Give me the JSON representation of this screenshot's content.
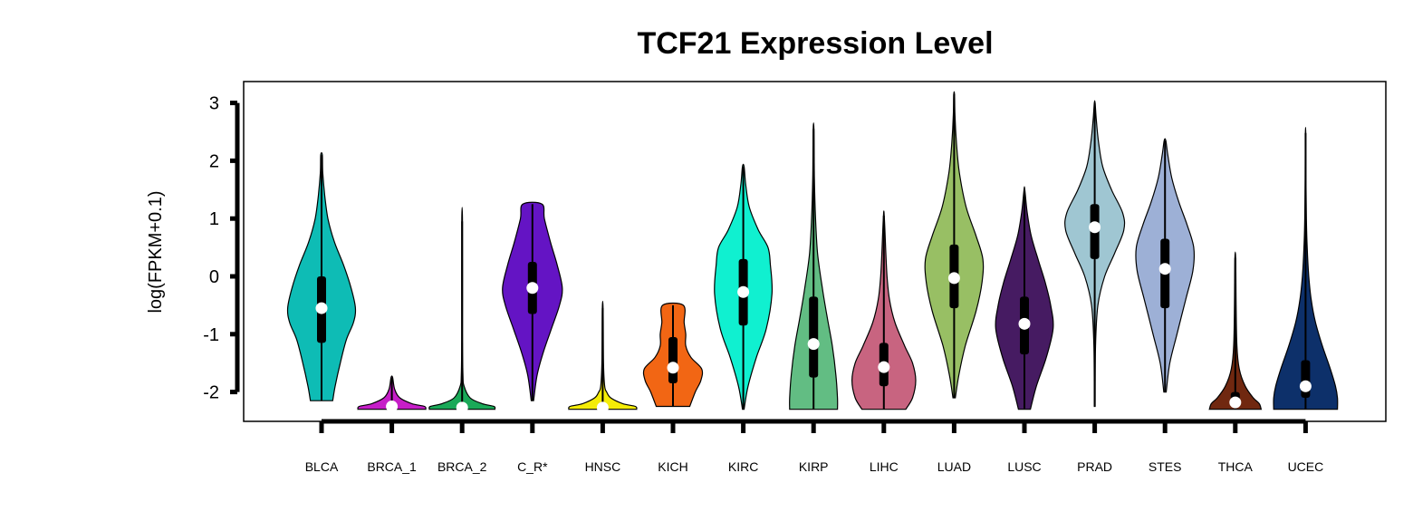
{
  "chart_data": {
    "type": "violin",
    "title": "TCF21 Expression Level",
    "ylabel": "log(FPKM+0.1)",
    "ylim": [
      -2.5,
      3.3
    ],
    "yticks": [
      3,
      2,
      1,
      0,
      -1,
      -2
    ],
    "grid": false,
    "categories": [
      "BLCA",
      "BRCA_1",
      "BRCA_2",
      "C_R*",
      "HNSC",
      "KICH",
      "KIRC",
      "KIRP",
      "LIHC",
      "LUAD",
      "LUSC",
      "PRAD",
      "STES",
      "THCA",
      "UCEC"
    ],
    "series": [
      {
        "category": "BLCA",
        "color": "#0ebcb5",
        "min": -2.15,
        "q1": -1.15,
        "median": -0.55,
        "q3": 0.0,
        "max": 2.1,
        "profile": [
          [
            -2.15,
            0.28
          ],
          [
            -1.9,
            0.34
          ],
          [
            -1.5,
            0.47
          ],
          [
            -1.1,
            0.62
          ],
          [
            -0.8,
            0.8
          ],
          [
            -0.55,
            0.85
          ],
          [
            -0.2,
            0.74
          ],
          [
            0.2,
            0.55
          ],
          [
            0.6,
            0.32
          ],
          [
            1.0,
            0.16
          ],
          [
            1.4,
            0.08
          ],
          [
            1.8,
            0.03
          ],
          [
            2.1,
            0.02
          ]
        ]
      },
      {
        "category": "BRCA_1",
        "color": "#c61ec8",
        "min": -2.3,
        "q1": -2.29,
        "median": -2.25,
        "q3": -2.2,
        "max": -1.75,
        "profile": [
          [
            -2.3,
            0.85
          ],
          [
            -2.25,
            0.82
          ],
          [
            -2.2,
            0.5
          ],
          [
            -2.1,
            0.2
          ],
          [
            -1.95,
            0.07
          ],
          [
            -1.75,
            0.02
          ]
        ]
      },
      {
        "category": "BRCA_2",
        "color": "#1aa958",
        "min": -2.3,
        "q1": -2.29,
        "median": -2.27,
        "q3": -2.22,
        "max": 0.95,
        "profile": [
          [
            -2.3,
            0.82
          ],
          [
            -2.25,
            0.8
          ],
          [
            -2.2,
            0.5
          ],
          [
            -2.1,
            0.2
          ],
          [
            -1.9,
            0.05
          ],
          [
            -1.7,
            0.02
          ],
          [
            -1.0,
            0.01
          ],
          [
            0.95,
            0.01
          ]
        ]
      },
      {
        "category": "C_R*",
        "color": "#6414c4",
        "min": -2.15,
        "q1": -0.65,
        "median": -0.2,
        "q3": 0.25,
        "max": 1.25,
        "profile": [
          [
            -2.15,
            0.03
          ],
          [
            -1.7,
            0.12
          ],
          [
            -1.3,
            0.28
          ],
          [
            -0.9,
            0.48
          ],
          [
            -0.5,
            0.68
          ],
          [
            -0.2,
            0.75
          ],
          [
            0.2,
            0.62
          ],
          [
            0.6,
            0.45
          ],
          [
            1.0,
            0.3
          ],
          [
            1.25,
            0.24
          ]
        ]
      },
      {
        "category": "HNSC",
        "color": "#f4ec07",
        "min": -2.3,
        "q1": -2.29,
        "median": -2.27,
        "q3": -2.22,
        "max": -0.55,
        "profile": [
          [
            -2.3,
            0.85
          ],
          [
            -2.25,
            0.82
          ],
          [
            -2.2,
            0.5
          ],
          [
            -2.1,
            0.2
          ],
          [
            -2.0,
            0.1
          ],
          [
            -1.9,
            0.05
          ],
          [
            -1.5,
            0.02
          ],
          [
            -0.55,
            0.01
          ]
        ]
      },
      {
        "category": "KICH",
        "color": "#f26614",
        "min": -2.25,
        "q1": -1.85,
        "median": -1.58,
        "q3": -1.05,
        "max": -0.5,
        "profile": [
          [
            -2.25,
            0.42
          ],
          [
            -2.0,
            0.56
          ],
          [
            -1.8,
            0.7
          ],
          [
            -1.6,
            0.72
          ],
          [
            -1.4,
            0.45
          ],
          [
            -1.2,
            0.32
          ],
          [
            -1.0,
            0.32
          ],
          [
            -0.8,
            0.28
          ],
          [
            -0.5,
            0.26
          ]
        ]
      },
      {
        "category": "KIRC",
        "color": "#10f0d0",
        "min": -2.3,
        "q1": -0.85,
        "median": -0.27,
        "q3": 0.3,
        "max": 1.9,
        "profile": [
          [
            -2.3,
            0.02
          ],
          [
            -1.9,
            0.12
          ],
          [
            -1.4,
            0.33
          ],
          [
            -0.9,
            0.58
          ],
          [
            -0.3,
            0.72
          ],
          [
            0.2,
            0.68
          ],
          [
            0.5,
            0.62
          ],
          [
            0.8,
            0.38
          ],
          [
            1.2,
            0.15
          ],
          [
            1.6,
            0.06
          ],
          [
            1.9,
            0.02
          ]
        ]
      },
      {
        "category": "KIRP",
        "color": "#62bd83",
        "min": -2.3,
        "q1": -1.75,
        "median": -1.17,
        "q3": -0.35,
        "max": 2.55,
        "profile": [
          [
            -2.3,
            0.6
          ],
          [
            -2.1,
            0.6
          ],
          [
            -1.7,
            0.56
          ],
          [
            -1.2,
            0.47
          ],
          [
            -0.7,
            0.34
          ],
          [
            -0.2,
            0.22
          ],
          [
            0.4,
            0.1
          ],
          [
            1.0,
            0.05
          ],
          [
            1.7,
            0.02
          ],
          [
            2.55,
            0.01
          ]
        ]
      },
      {
        "category": "LIHC",
        "color": "#c86480",
        "min": -2.3,
        "q1": -1.9,
        "median": -1.57,
        "q3": -1.15,
        "max": 1.05,
        "profile": [
          [
            -2.3,
            0.55
          ],
          [
            -2.1,
            0.72
          ],
          [
            -1.8,
            0.8
          ],
          [
            -1.5,
            0.72
          ],
          [
            -1.2,
            0.52
          ],
          [
            -0.8,
            0.28
          ],
          [
            -0.4,
            0.14
          ],
          [
            0.0,
            0.08
          ],
          [
            0.4,
            0.05
          ],
          [
            1.05,
            0.01
          ]
        ]
      },
      {
        "category": "LUAD",
        "color": "#98bf64",
        "min": -2.1,
        "q1": -0.55,
        "median": -0.03,
        "q3": 0.55,
        "max": 3.15,
        "profile": [
          [
            -2.1,
            0.03
          ],
          [
            -1.7,
            0.12
          ],
          [
            -1.2,
            0.28
          ],
          [
            -0.6,
            0.55
          ],
          [
            -0.1,
            0.7
          ],
          [
            0.3,
            0.72
          ],
          [
            0.7,
            0.55
          ],
          [
            1.2,
            0.3
          ],
          [
            1.8,
            0.13
          ],
          [
            2.3,
            0.06
          ],
          [
            2.8,
            0.02
          ],
          [
            3.15,
            0.01
          ]
        ]
      },
      {
        "category": "LUSC",
        "color": "#461b62",
        "min": -2.3,
        "q1": -1.35,
        "median": -0.82,
        "q3": -0.35,
        "max": 1.5,
        "profile": [
          [
            -2.3,
            0.15
          ],
          [
            -1.9,
            0.3
          ],
          [
            -1.4,
            0.55
          ],
          [
            -0.9,
            0.72
          ],
          [
            -0.5,
            0.66
          ],
          [
            -0.1,
            0.52
          ],
          [
            0.3,
            0.34
          ],
          [
            0.7,
            0.17
          ],
          [
            1.1,
            0.07
          ],
          [
            1.5,
            0.01
          ]
        ]
      },
      {
        "category": "PRAD",
        "color": "#9fc6d2",
        "min": -2.25,
        "q1": 0.3,
        "median": 0.85,
        "q3": 1.25,
        "max": 3.0,
        "profile": [
          [
            -2.25,
            0.01
          ],
          [
            -1.2,
            0.02
          ],
          [
            -0.5,
            0.08
          ],
          [
            0.0,
            0.25
          ],
          [
            0.4,
            0.5
          ],
          [
            0.8,
            0.73
          ],
          [
            1.1,
            0.7
          ],
          [
            1.5,
            0.42
          ],
          [
            1.9,
            0.2
          ],
          [
            2.3,
            0.1
          ],
          [
            2.7,
            0.04
          ],
          [
            3.0,
            0.01
          ]
        ]
      },
      {
        "category": "STES",
        "color": "#9db0d6",
        "min": -2.0,
        "q1": -0.55,
        "median": 0.13,
        "q3": 0.65,
        "max": 2.35,
        "profile": [
          [
            -2.0,
            0.03
          ],
          [
            -1.5,
            0.12
          ],
          [
            -1.0,
            0.3
          ],
          [
            -0.4,
            0.52
          ],
          [
            0.1,
            0.7
          ],
          [
            0.5,
            0.72
          ],
          [
            0.9,
            0.55
          ],
          [
            1.3,
            0.34
          ],
          [
            1.7,
            0.17
          ],
          [
            2.1,
            0.07
          ],
          [
            2.35,
            0.02
          ]
        ]
      },
      {
        "category": "THCA",
        "color": "#702810",
        "min": -2.3,
        "q1": -2.26,
        "median": -2.18,
        "q3": -2.0,
        "max": 0.32,
        "profile": [
          [
            -2.3,
            0.65
          ],
          [
            -2.2,
            0.6
          ],
          [
            -2.1,
            0.45
          ],
          [
            -1.9,
            0.25
          ],
          [
            -1.6,
            0.1
          ],
          [
            -1.2,
            0.04
          ],
          [
            -0.5,
            0.02
          ],
          [
            0.32,
            0.01
          ]
        ]
      },
      {
        "category": "UCEC",
        "color": "#0d306a",
        "min": -2.3,
        "q1": -2.1,
        "median": -1.9,
        "q3": -1.45,
        "max": 2.48,
        "profile": [
          [
            -2.3,
            0.8
          ],
          [
            -2.1,
            0.8
          ],
          [
            -1.9,
            0.75
          ],
          [
            -1.6,
            0.62
          ],
          [
            -1.2,
            0.42
          ],
          [
            -0.8,
            0.25
          ],
          [
            -0.4,
            0.14
          ],
          [
            0.0,
            0.08
          ],
          [
            0.5,
            0.04
          ],
          [
            1.0,
            0.02
          ],
          [
            1.7,
            0.01
          ],
          [
            2.48,
            0.005
          ]
        ]
      }
    ]
  }
}
